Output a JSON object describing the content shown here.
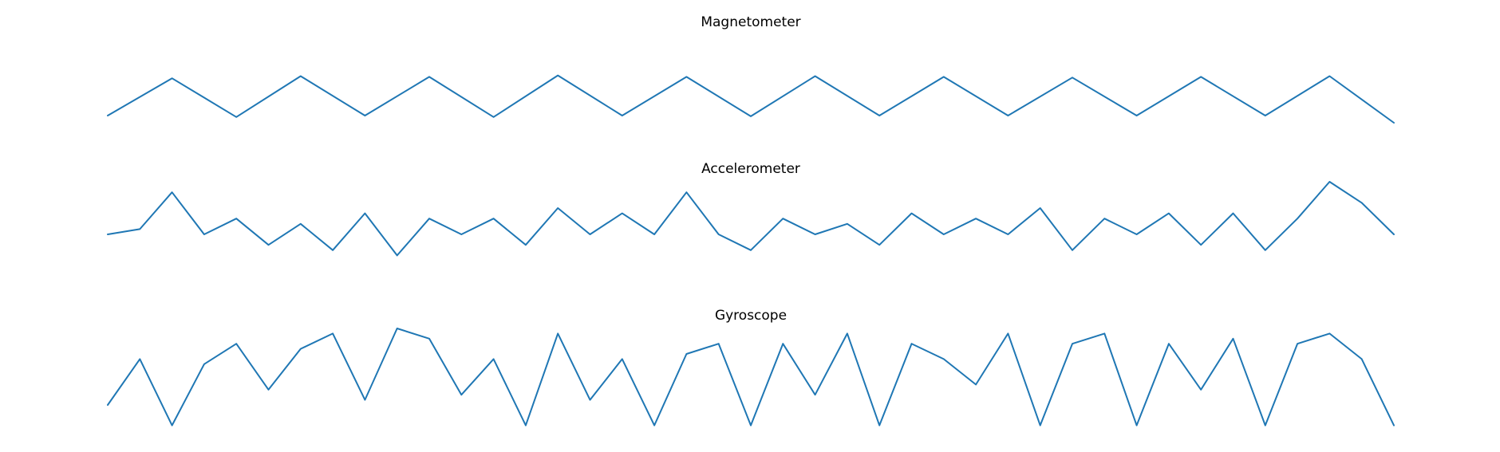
{
  "colors": {
    "line": "#1f77b4",
    "background": "#ffffff",
    "text": "#000000"
  },
  "chart_data": [
    {
      "type": "line",
      "title": "Magnetometer",
      "xlabel": "",
      "ylabel": "",
      "axes_visible": false,
      "grid": false,
      "legend": "none",
      "x": [
        0,
        0.5,
        1,
        1.5,
        2,
        2.5,
        3,
        3.5,
        4,
        4.5,
        5,
        5.5,
        6,
        6.5,
        7,
        7.5,
        8,
        8.5,
        9,
        9.5,
        10
      ],
      "ylim": [
        0,
        1
      ],
      "series": [
        {
          "values": [
            0.3,
            0.82,
            0.28,
            0.85,
            0.3,
            0.84,
            0.28,
            0.86,
            0.3,
            0.84,
            0.29,
            0.85,
            0.3,
            0.84,
            0.3,
            0.83,
            0.3,
            0.84,
            0.3,
            0.85,
            0.2
          ]
        }
      ]
    },
    {
      "type": "line",
      "title": "Accelerometer",
      "xlabel": "",
      "ylabel": "",
      "axes_visible": false,
      "grid": false,
      "legend": "none",
      "x": [
        0,
        0.25,
        0.5,
        0.75,
        1,
        1.25,
        1.5,
        1.75,
        2,
        2.25,
        2.5,
        2.75,
        3,
        3.25,
        3.5,
        3.75,
        4,
        4.25,
        4.5,
        4.75,
        5,
        5.25,
        5.5,
        5.75,
        6,
        6.25,
        6.5,
        6.75,
        7,
        7.25,
        7.5,
        7.75,
        8,
        8.25,
        8.5,
        8.75,
        9,
        9.25,
        9.5,
        9.75,
        10
      ],
      "ylim": [
        -1,
        1
      ],
      "series": [
        {
          "values": [
            0,
            0.1,
            0.8,
            0,
            0.3,
            -0.2,
            0.2,
            -0.3,
            0.4,
            -0.4,
            0.3,
            0,
            0.3,
            -0.2,
            0.5,
            0,
            0.4,
            0,
            0.8,
            0,
            -0.3,
            0.3,
            0,
            0.2,
            -0.2,
            0.4,
            0,
            0.3,
            0,
            0.5,
            -0.3,
            0.3,
            0,
            0.4,
            -0.2,
            0.4,
            -0.3,
            0.3,
            1.0,
            0.6,
            0
          ]
        }
      ]
    },
    {
      "type": "line",
      "title": "Gyroscope",
      "xlabel": "",
      "ylabel": "",
      "axes_visible": false,
      "grid": false,
      "legend": "none",
      "x": [
        0,
        0.25,
        0.5,
        0.75,
        1,
        1.25,
        1.5,
        1.75,
        2,
        2.25,
        2.5,
        2.75,
        3,
        3.25,
        3.5,
        3.75,
        4,
        4.25,
        4.5,
        4.75,
        5,
        5.25,
        5.5,
        5.75,
        6,
        6.25,
        6.5,
        6.75,
        7,
        7.25,
        7.5,
        7.75,
        8,
        8.25,
        8.5,
        8.75,
        9,
        9.25,
        9.5,
        9.75,
        10
      ],
      "ylim": [
        0,
        1
      ],
      "series": [
        {
          "values": [
            0.25,
            0.7,
            0.05,
            0.65,
            0.85,
            0.4,
            0.8,
            0.95,
            0.3,
            1.0,
            0.9,
            0.35,
            0.7,
            0.05,
            0.95,
            0.3,
            0.7,
            0.05,
            0.75,
            0.85,
            0.05,
            0.85,
            0.35,
            0.95,
            0.05,
            0.85,
            0.7,
            0.45,
            0.95,
            0.05,
            0.85,
            0.95,
            0.05,
            0.85,
            0.4,
            0.9,
            0.05,
            0.85,
            0.95,
            0.7,
            0.05
          ]
        }
      ]
    }
  ]
}
